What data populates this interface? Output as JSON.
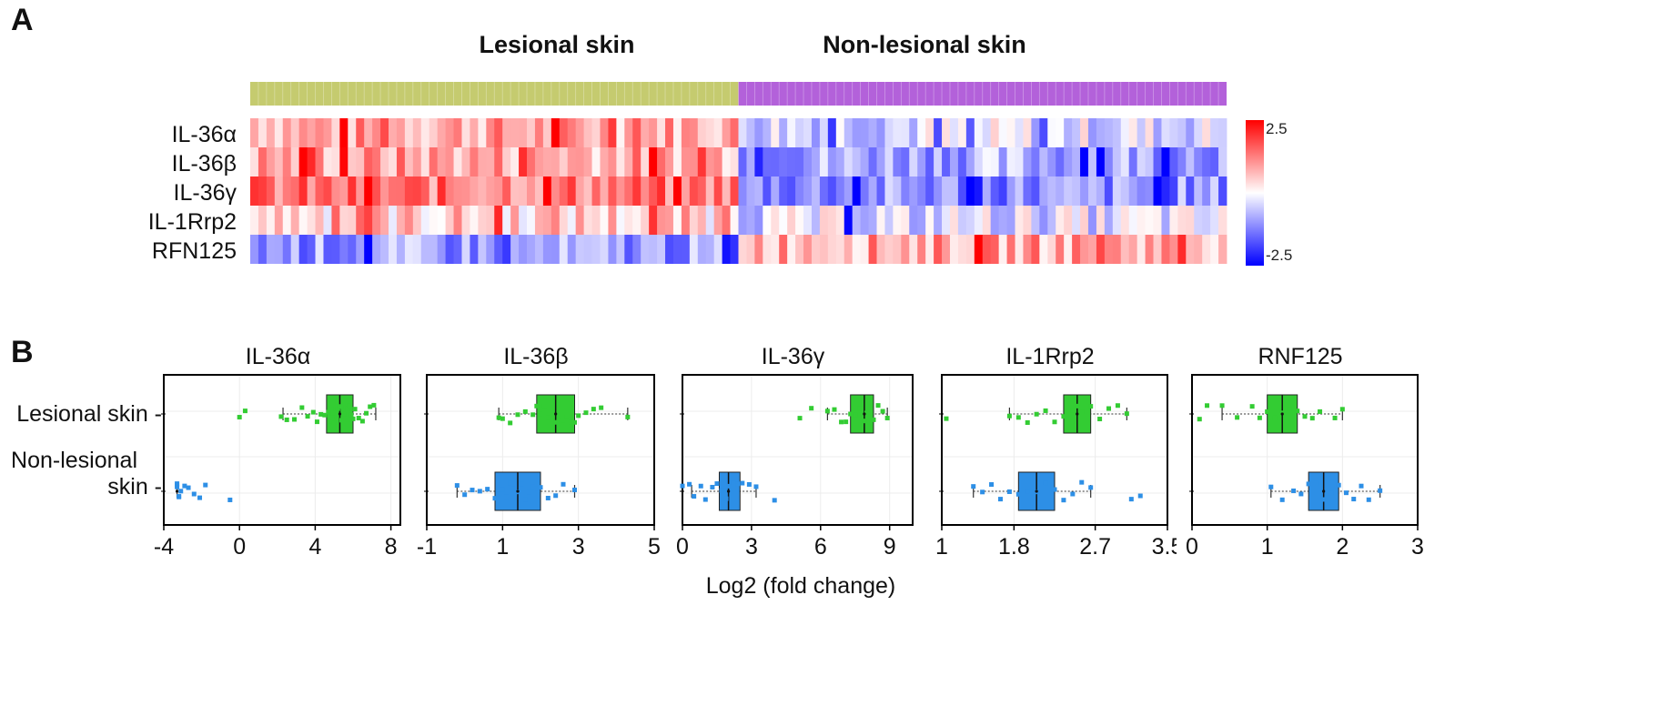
{
  "panel_a": {
    "letter": "A",
    "groups": [
      "Lesional skin",
      "Non-lesional skin"
    ],
    "group_colors": [
      "#c5cb6f",
      "#b361da"
    ],
    "genes": [
      "IL-36α",
      "IL-36β",
      "IL-36γ",
      "IL-1Rrp2",
      "RFN125"
    ],
    "scale": {
      "max_label": "2.5",
      "min_label": "-2.5",
      "max_color": "#ff0000",
      "mid_color": "#ffffff",
      "min_color": "#0000ff"
    }
  },
  "panel_b": {
    "letter": "B",
    "row_labels": {
      "lesional": "Lesional skin -",
      "non_lesional_line1": "Non-lesional",
      "non_lesional_line2": "skin   -"
    },
    "xlabel": "Log2 (fold change)",
    "colors": {
      "lesional": "#33cc33",
      "non_lesional": "#2d8fe6"
    }
  },
  "chart_data": [
    {
      "type": "heatmap",
      "rows": [
        "IL-36α",
        "IL-36β",
        "IL-36γ",
        "IL-1Rrp2",
        "RFN125"
      ],
      "column_groups": [
        {
          "name": "Lesional skin",
          "n_columns": 60
        },
        {
          "name": "Non-lesional skin",
          "n_columns": 60
        }
      ],
      "scale": [
        -2.5,
        2.5
      ],
      "summary_mean_z": {
        "IL-36α": [
          0.9,
          -0.3
        ],
        "IL-36β": [
          0.9,
          -0.8
        ],
        "IL-36γ": [
          1.3,
          -1.1
        ],
        "IL-1Rrp2": [
          0.5,
          -0.3
        ],
        "RFN125": [
          -1.0,
          0.9
        ]
      }
    },
    {
      "type": "box",
      "title": "IL-36α",
      "xlim": [
        -4,
        8.5
      ],
      "xticks": [
        -4,
        0,
        4,
        8
      ],
      "series": [
        {
          "name": "Lesional skin",
          "q1": 4.6,
          "median": 5.3,
          "q3": 6.0,
          "whisker_low": 2.3,
          "whisker_high": 7.2,
          "mean": 5.3,
          "points": [
            0.0,
            0.3,
            2.2,
            2.5,
            2.9,
            3.3,
            3.6,
            3.9,
            4.1,
            4.3,
            4.5,
            4.7,
            4.8,
            4.9,
            5.0,
            5.1,
            5.2,
            5.3,
            5.4,
            5.5,
            5.6,
            5.7,
            5.8,
            5.9,
            6.0,
            6.1,
            6.3,
            6.5,
            6.7,
            6.9,
            7.1
          ]
        },
        {
          "name": "Non-lesional skin",
          "q1": -3.3,
          "median": -3.3,
          "q3": -3.3,
          "whisker_low": -3.3,
          "whisker_high": -3.3,
          "mean": -3.3,
          "points": [
            -3.3,
            -3.3,
            -3.3,
            -3.2,
            -3.2,
            -3.1,
            -2.9,
            -2.7,
            -2.4,
            -2.1,
            -1.8,
            -0.5
          ]
        }
      ]
    },
    {
      "type": "box",
      "title": "IL-36β",
      "xlim": [
        -1,
        5
      ],
      "xticks": [
        -1,
        1,
        3,
        5
      ],
      "series": [
        {
          "name": "Lesional skin",
          "q1": 1.9,
          "median": 2.4,
          "q3": 2.9,
          "whisker_low": 0.9,
          "whisker_high": 4.3,
          "mean": 2.4,
          "points": [
            0.9,
            1.0,
            1.2,
            1.4,
            1.6,
            1.8,
            1.9,
            2.0,
            2.1,
            2.2,
            2.3,
            2.4,
            2.5,
            2.6,
            2.7,
            2.8,
            2.9,
            3.0,
            3.2,
            3.4,
            3.6,
            4.3
          ]
        },
        {
          "name": "Non-lesional skin",
          "q1": 0.8,
          "median": 1.4,
          "q3": 2.0,
          "whisker_low": -0.2,
          "whisker_high": 2.9,
          "mean": 1.4,
          "points": [
            -0.2,
            0.0,
            0.2,
            0.4,
            0.6,
            0.8,
            0.9,
            1.0,
            1.1,
            1.2,
            1.3,
            1.4,
            1.5,
            1.6,
            1.7,
            1.8,
            1.9,
            2.0,
            2.2,
            2.4,
            2.6,
            2.9
          ]
        }
      ]
    },
    {
      "type": "box",
      "title": "IL-36γ",
      "xlim": [
        0,
        10
      ],
      "xticks": [
        0,
        3,
        6,
        9
      ],
      "series": [
        {
          "name": "Lesional skin",
          "q1": 7.3,
          "median": 7.9,
          "q3": 8.3,
          "whisker_low": 6.3,
          "whisker_high": 8.9,
          "mean": 7.9,
          "points": [
            5.1,
            5.6,
            6.3,
            6.6,
            6.9,
            7.1,
            7.3,
            7.5,
            7.7,
            7.9,
            8.0,
            8.1,
            8.3,
            8.5,
            8.7,
            8.9
          ]
        },
        {
          "name": "Non-lesional skin",
          "q1": 1.6,
          "median": 2.0,
          "q3": 2.5,
          "whisker_low": 0.4,
          "whisker_high": 3.2,
          "mean": 2.0,
          "points": [
            0.0,
            0.3,
            0.5,
            0.8,
            1.0,
            1.3,
            1.5,
            1.7,
            1.9,
            2.0,
            2.2,
            2.4,
            2.6,
            2.9,
            3.2,
            4.0
          ]
        }
      ]
    },
    {
      "type": "box",
      "title": "IL-1Rrp2",
      "xlim": [
        1,
        3.5
      ],
      "xticks": [
        1,
        1.8,
        2.7,
        3.5
      ],
      "series": [
        {
          "name": "Lesional skin",
          "q1": 2.35,
          "median": 2.5,
          "q3": 2.65,
          "whisker_low": 1.75,
          "whisker_high": 3.05,
          "mean": 2.5,
          "points": [
            1.05,
            1.75,
            1.85,
            1.95,
            2.05,
            2.15,
            2.25,
            2.35,
            2.45,
            2.5,
            2.55,
            2.65,
            2.75,
            2.85,
            2.95,
            3.05
          ]
        },
        {
          "name": "Non-lesional skin",
          "q1": 1.85,
          "median": 2.05,
          "q3": 2.25,
          "whisker_low": 1.35,
          "whisker_high": 2.65,
          "mean": 2.05,
          "points": [
            1.35,
            1.45,
            1.55,
            1.65,
            1.75,
            1.85,
            1.95,
            2.05,
            2.15,
            2.25,
            2.35,
            2.45,
            2.55,
            2.65,
            3.1,
            3.2
          ]
        }
      ]
    },
    {
      "type": "box",
      "title": "RNF125",
      "xlim": [
        0,
        3
      ],
      "xticks": [
        0,
        1,
        2,
        3
      ],
      "series": [
        {
          "name": "Lesional skin",
          "q1": 1.0,
          "median": 1.2,
          "q3": 1.4,
          "whisker_low": 0.4,
          "whisker_high": 2.0,
          "mean": 1.2,
          "points": [
            0.1,
            0.2,
            0.4,
            0.6,
            0.8,
            0.9,
            1.0,
            1.1,
            1.2,
            1.3,
            1.4,
            1.5,
            1.6,
            1.7,
            1.9,
            2.0
          ]
        },
        {
          "name": "Non-lesional skin",
          "q1": 1.55,
          "median": 1.75,
          "q3": 1.95,
          "whisker_low": 1.05,
          "whisker_high": 2.5,
          "mean": 1.75,
          "points": [
            1.05,
            1.2,
            1.35,
            1.45,
            1.55,
            1.65,
            1.75,
            1.85,
            1.95,
            2.05,
            2.15,
            2.25,
            2.35,
            2.5
          ]
        }
      ]
    }
  ]
}
